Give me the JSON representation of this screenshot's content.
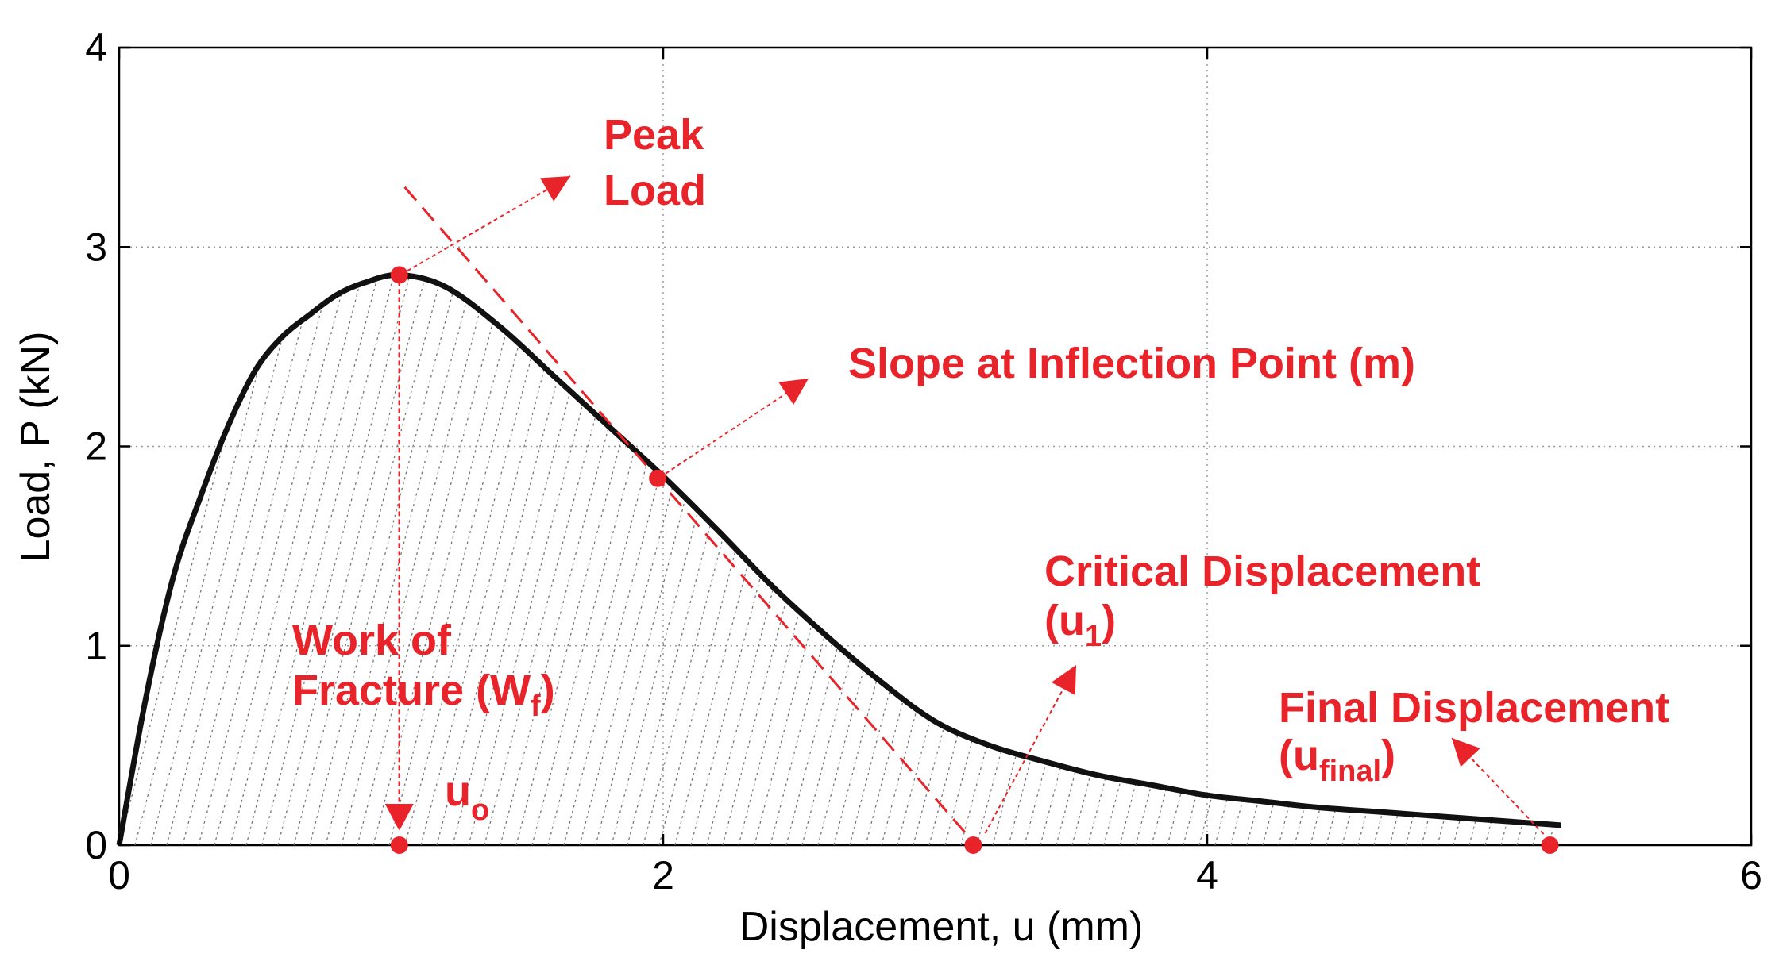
{
  "chart_data": {
    "type": "line",
    "title": "",
    "xlabel": "Displacement, u (mm)",
    "ylabel": "Load, P (kN)",
    "xlim": [
      0,
      6
    ],
    "ylim": [
      0,
      4
    ],
    "xticks": [
      "0",
      "2",
      "4",
      "6"
    ],
    "yticks": [
      "0",
      "1",
      "2",
      "3",
      "4"
    ],
    "grid": true,
    "colors": {
      "curve": "#111111",
      "accent": "#e8232a",
      "grid": "#9a9a9a"
    },
    "series": [
      {
        "name": "Load-displacement curve",
        "x": [
          0,
          0.1,
          0.2,
          0.3,
          0.4,
          0.5,
          0.6,
          0.7,
          0.8,
          0.9,
          1.03,
          1.2,
          1.4,
          1.6,
          1.8,
          2.0,
          2.2,
          2.4,
          2.6,
          2.8,
          3.0,
          3.2,
          3.4,
          3.6,
          3.8,
          4.0,
          4.2,
          4.4,
          4.6,
          4.8,
          5.0,
          5.2,
          5.3
        ],
        "y": [
          0,
          0.75,
          1.35,
          1.75,
          2.1,
          2.38,
          2.55,
          2.66,
          2.76,
          2.82,
          2.86,
          2.8,
          2.6,
          2.35,
          2.1,
          1.85,
          1.58,
          1.3,
          1.05,
          0.82,
          0.62,
          0.5,
          0.42,
          0.35,
          0.3,
          0.25,
          0.22,
          0.19,
          0.17,
          0.15,
          0.13,
          0.11,
          0.1
        ]
      }
    ],
    "tangent_line": {
      "name": "Slope at inflection point",
      "from": [
        1.05,
        3.3
      ],
      "to": [
        3.15,
        0
      ]
    },
    "points": [
      {
        "name": "peak-load",
        "x": 1.03,
        "y": 2.86
      },
      {
        "name": "inflection-point",
        "x": 1.98,
        "y": 1.84
      },
      {
        "name": "u-o",
        "x": 1.03,
        "y": 0
      },
      {
        "name": "u-1",
        "x": 3.14,
        "y": 0
      },
      {
        "name": "u-final",
        "x": 5.26,
        "y": 0
      }
    ],
    "annotations": {
      "peak_line1": "Peak",
      "peak_line2": "Load",
      "slope": "Slope at Inflection Point (m)",
      "work_line1": "Work of",
      "work_line2": "Fracture (W",
      "work_sub": "f",
      "work_end": ")",
      "uo_main": "u",
      "uo_sub": "o",
      "critical_line1": "Critical Displacement",
      "critical_open": "(u",
      "critical_sub": "1",
      "critical_close": ")",
      "final_line1": "Final Displacement",
      "final_open": "(u",
      "final_sub": "final",
      "final_close": ")"
    }
  }
}
